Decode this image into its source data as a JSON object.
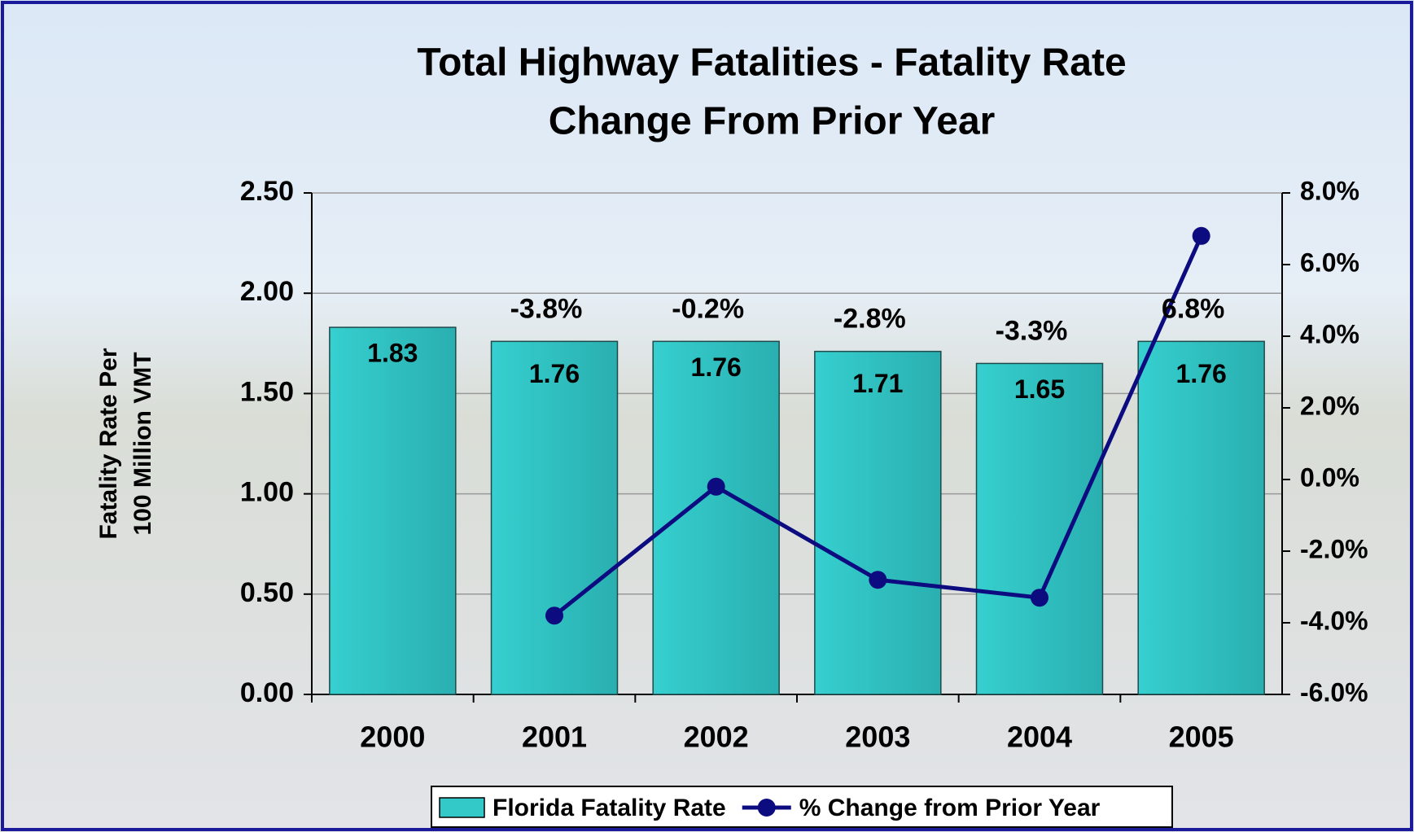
{
  "chart_data": {
    "type": "combo",
    "title": "Total Highway Fatalities - Fatality Rate",
    "subtitle": "Change From Prior Year",
    "ylabel": [
      "Fatality Rate Per",
      "100 Million VMT"
    ],
    "categories": [
      "2000",
      "2001",
      "2002",
      "2003",
      "2004",
      "2005"
    ],
    "series": [
      {
        "name": "Florida Fatality Rate",
        "type": "bar",
        "color": "#33c9c9",
        "values": [
          1.83,
          1.76,
          1.76,
          1.71,
          1.65,
          1.76
        ]
      },
      {
        "name": "% Change from Prior Year",
        "type": "line",
        "axis": "y2",
        "color": "#0c0c80",
        "values": [
          null,
          -3.8,
          -0.2,
          -2.8,
          -3.3,
          6.8
        ],
        "value_labels": [
          null,
          "-3.8%",
          "-0.2%",
          "-2.8%",
          "-3.3%",
          "6.8%"
        ]
      }
    ],
    "ylim": [
      0,
      2.5
    ],
    "yticks": [
      {
        "value": 0,
        "label": "0.00"
      },
      {
        "value": 0.5,
        "label": "0.50"
      },
      {
        "value": 1,
        "label": "1.00"
      },
      {
        "value": 1.5,
        "label": "1.50"
      },
      {
        "value": 2,
        "label": "2.00"
      },
      {
        "value": 2.5,
        "label": "2.50"
      }
    ],
    "y2lim": [
      -6,
      8
    ],
    "y2ticks": [
      {
        "value": -6,
        "label": "-6.0%"
      },
      {
        "value": -4,
        "label": "-4.0%"
      },
      {
        "value": -2,
        "label": "-2.0%"
      },
      {
        "value": 0,
        "label": "0.0%"
      },
      {
        "value": 2,
        "label": "2.0%"
      },
      {
        "value": 4,
        "label": "4.0%"
      },
      {
        "value": 6,
        "label": "6.0%"
      },
      {
        "value": 8,
        "label": "8.0%"
      }
    ],
    "grid": true,
    "legend": "bottom"
  }
}
